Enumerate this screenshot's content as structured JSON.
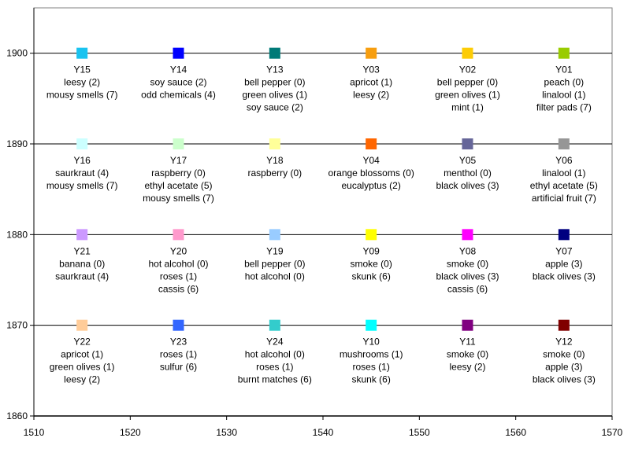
{
  "chart_data": {
    "type": "scatter",
    "title": "",
    "xlabel": "",
    "ylabel": "",
    "xlim": [
      1510,
      1570
    ],
    "ylim": [
      1860,
      1905
    ],
    "x_ticks": [
      "1510",
      "1520",
      "1530",
      "1540",
      "1550",
      "1560",
      "1570"
    ],
    "y_ticks": [
      "1860",
      "1870",
      "1880",
      "1890",
      "1900"
    ],
    "x_tick_values": [
      1510,
      1520,
      1530,
      1540,
      1550,
      1560,
      1570
    ],
    "y_tick_values": [
      1860,
      1870,
      1880,
      1890,
      1900
    ],
    "gridlines_y": [
      1870,
      1880,
      1890,
      1900
    ],
    "legend": "none",
    "points": [
      {
        "x": 1515,
        "y": 1900,
        "name": "Y15",
        "color": "#19C3F0",
        "notes": [
          "leesy (2)",
          "mousy smells (7)"
        ]
      },
      {
        "x": 1525,
        "y": 1900,
        "name": "Y14",
        "color": "#0000FF",
        "notes": [
          "soy sauce (2)",
          "odd chemicals (4)"
        ]
      },
      {
        "x": 1535,
        "y": 1900,
        "name": "Y13",
        "color": "#007A78",
        "notes": [
          "bell pepper (0)",
          "green olives (1)",
          "soy sauce (2)"
        ]
      },
      {
        "x": 1545,
        "y": 1900,
        "name": "Y03",
        "color": "#F79E0F",
        "notes": [
          "apricot (1)",
          "leesy (2)"
        ]
      },
      {
        "x": 1555,
        "y": 1900,
        "name": "Y02",
        "color": "#FDCC06",
        "notes": [
          "bell pepper (0)",
          "green olives (1)",
          "mint (1)"
        ]
      },
      {
        "x": 1565,
        "y": 1900,
        "name": "Y01",
        "color": "#99CC00",
        "notes": [
          "peach (0)",
          "linalool (1)",
          "filter pads (7)"
        ]
      },
      {
        "x": 1515,
        "y": 1890,
        "name": "Y16",
        "color": "#CCFFFF",
        "notes": [
          "saurkraut (4)",
          "mousy smells (7)"
        ]
      },
      {
        "x": 1525,
        "y": 1890,
        "name": "Y17",
        "color": "#CCFFCC",
        "notes": [
          "raspberry (0)",
          "ethyl acetate (5)",
          "mousy smells (7)"
        ]
      },
      {
        "x": 1535,
        "y": 1890,
        "name": "Y18",
        "color": "#FFFF99",
        "notes": [
          "raspberry (0)"
        ]
      },
      {
        "x": 1545,
        "y": 1890,
        "name": "Y04",
        "color": "#FF6600",
        "notes": [
          "orange blossoms (0)",
          "eucalyptus (2)"
        ]
      },
      {
        "x": 1555,
        "y": 1890,
        "name": "Y05",
        "color": "#666699",
        "notes": [
          "menthol (0)",
          "black olives (3)"
        ]
      },
      {
        "x": 1565,
        "y": 1890,
        "name": "Y06",
        "color": "#969696",
        "notes": [
          "linalool (1)",
          "ethyl acetate (5)",
          "artificial fruit (7)"
        ]
      },
      {
        "x": 1515,
        "y": 1880,
        "name": "Y21",
        "color": "#CC99FF",
        "notes": [
          "banana (0)",
          "saurkraut (4)"
        ]
      },
      {
        "x": 1525,
        "y": 1880,
        "name": "Y20",
        "color": "#FF99CC",
        "notes": [
          "hot alcohol (0)",
          "roses (1)",
          "cassis (6)"
        ]
      },
      {
        "x": 1535,
        "y": 1880,
        "name": "Y19",
        "color": "#99CCFF",
        "notes": [
          "bell pepper (0)",
          "hot alcohol (0)"
        ]
      },
      {
        "x": 1545,
        "y": 1880,
        "name": "Y09",
        "color": "#FFFF00",
        "notes": [
          "smoke (0)",
          "skunk (6)"
        ]
      },
      {
        "x": 1555,
        "y": 1880,
        "name": "Y08",
        "color": "#FF00FF",
        "notes": [
          "smoke (0)",
          "black olives (3)",
          "cassis (6)"
        ]
      },
      {
        "x": 1565,
        "y": 1880,
        "name": "Y07",
        "color": "#000080",
        "notes": [
          "apple (3)",
          "black olives (3)"
        ]
      },
      {
        "x": 1515,
        "y": 1870,
        "name": "Y22",
        "color": "#FFCC99",
        "notes": [
          "apricot (1)",
          "green olives (1)",
          "leesy (2)"
        ]
      },
      {
        "x": 1525,
        "y": 1870,
        "name": "Y23",
        "color": "#3366FF",
        "notes": [
          "roses (1)",
          "sulfur (6)"
        ]
      },
      {
        "x": 1535,
        "y": 1870,
        "name": "Y24",
        "color": "#33CCCC",
        "notes": [
          "hot alcohol (0)",
          "roses (1)",
          "burnt matches (6)"
        ]
      },
      {
        "x": 1545,
        "y": 1870,
        "name": "Y10",
        "color": "#00FFFF",
        "notes": [
          "mushrooms (1)",
          "roses (1)",
          "skunk (6)"
        ]
      },
      {
        "x": 1555,
        "y": 1870,
        "name": "Y11",
        "color": "#800080",
        "notes": [
          "smoke (0)",
          "leesy (2)"
        ]
      },
      {
        "x": 1565,
        "y": 1870,
        "name": "Y12",
        "color": "#800000",
        "notes": [
          "smoke (0)",
          "apple (3)",
          "black olives (3)"
        ]
      }
    ]
  }
}
